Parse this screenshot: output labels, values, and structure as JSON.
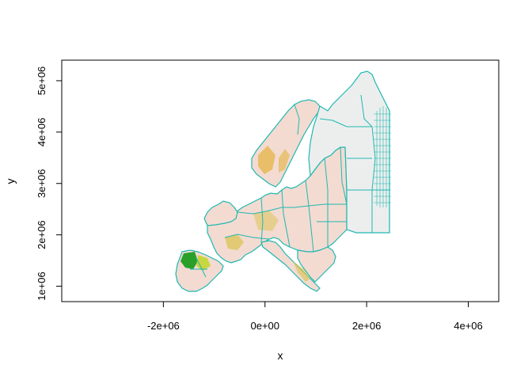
{
  "chart_data": {
    "type": "raster-map",
    "xlabel": "x",
    "ylabel": "y",
    "xlim": [
      -4000000,
      4600000
    ],
    "ylim": [
      700000,
      5400000
    ],
    "x_ticks": [
      -2000000,
      0,
      2000000,
      4000000
    ],
    "x_tick_labels": [
      "-2e+06",
      "0e+00",
      "2e+06",
      "4e+06"
    ],
    "y_ticks": [
      1000000,
      2000000,
      3000000,
      4000000,
      5000000
    ],
    "y_tick_labels": [
      "1e+06",
      "2e+06",
      "3e+06",
      "4e+06",
      "5e+06"
    ],
    "colors": {
      "raster_low": "#f3dbd2",
      "raster_mid": "#e6c85a",
      "raster_high": "#2aa02a",
      "boundaries": "#1fb8b0",
      "no_data_east": "#eceeee"
    }
  }
}
